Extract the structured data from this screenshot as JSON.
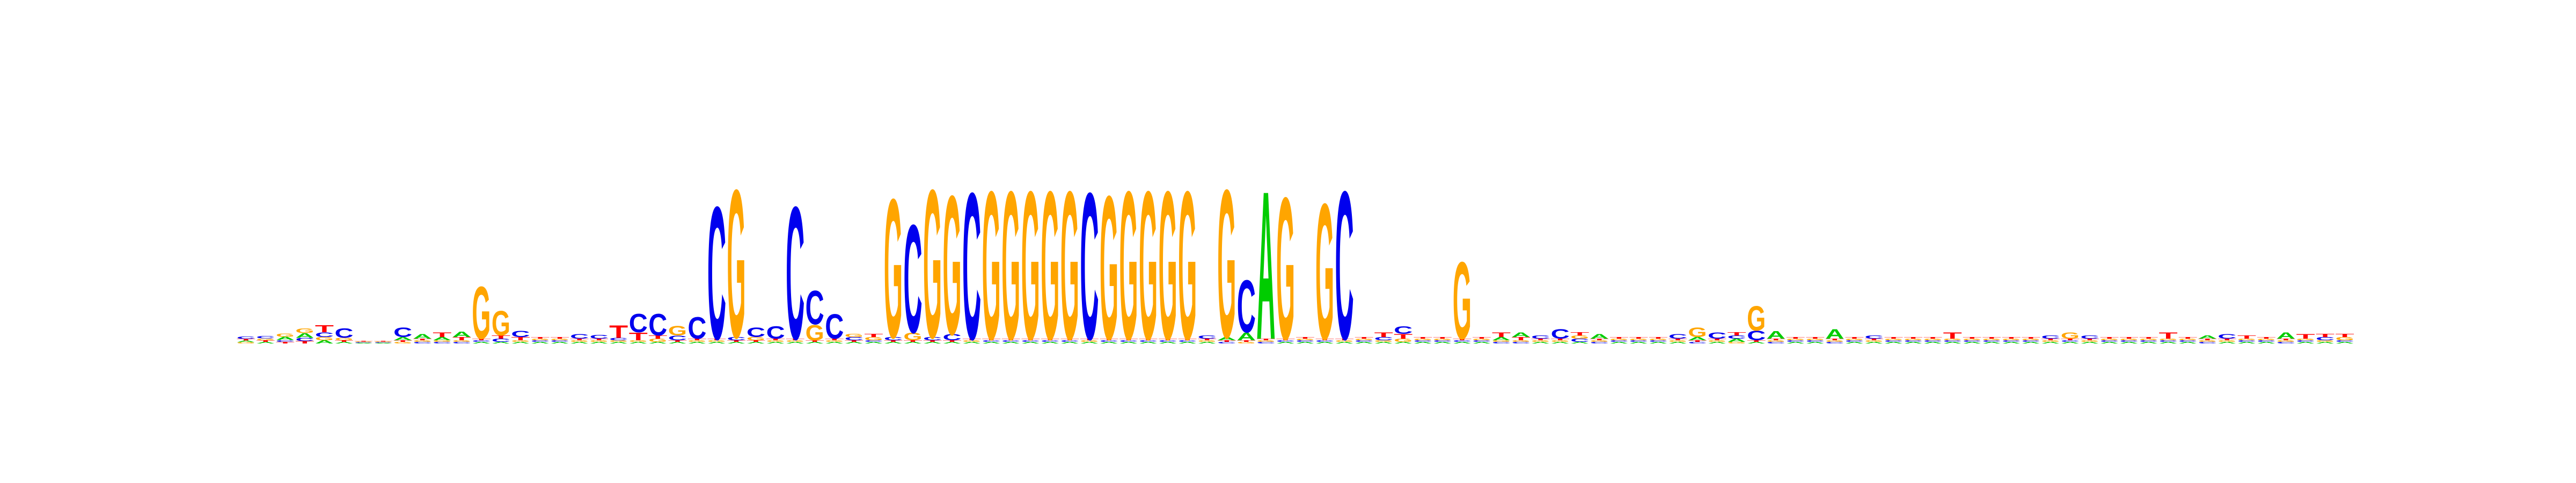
{
  "chart_data": {
    "type": "sequence-logo",
    "title": "",
    "xlabel": "",
    "ylabel": "",
    "axes_visible": false,
    "alphabet": [
      "A",
      "C",
      "G",
      "T"
    ],
    "colors": {
      "A": "#00cc00",
      "C": "#0000ee",
      "G": "#ffa500",
      "T": "#ff0000"
    },
    "ylim": [
      0,
      2
    ],
    "positions": [
      {
        "A": 0.01,
        "C": 0.015,
        "G": 0.008,
        "T": 0.01
      },
      {
        "A": 0.01,
        "C": 0.015,
        "G": 0.012,
        "T": 0.01
      },
      {
        "A": 0.02,
        "C": 0.012,
        "G": 0.02,
        "T": 0.01
      },
      {
        "A": 0.03,
        "C": 0.02,
        "G": 0.03,
        "T": 0.015
      },
      {
        "A": 0.02,
        "C": 0.03,
        "G": 0.02,
        "T": 0.045
      },
      {
        "A": 0.01,
        "C": 0.06,
        "G": 0.015,
        "T": 0.01
      },
      {
        "A": 0.004,
        "C": 0.004,
        "G": 0.004,
        "T": 0.004
      },
      {
        "A": 0.004,
        "C": 0.004,
        "G": 0.004,
        "T": 0.004
      },
      {
        "A": 0.02,
        "C": 0.06,
        "G": 0.01,
        "T": 0.01
      },
      {
        "A": 0.03,
        "C": 0.01,
        "G": 0.01,
        "T": 0.01
      },
      {
        "A": 0.02,
        "C": 0.01,
        "G": 0.01,
        "T": 0.03
      },
      {
        "A": 0.035,
        "C": 0.01,
        "G": 0.01,
        "T": 0.02
      },
      {
        "A": 0.01,
        "C": 0.01,
        "G": 0.34,
        "T": 0.01
      },
      {
        "A": 0.01,
        "C": 0.02,
        "G": 0.16,
        "T": 0.02
      },
      {
        "A": 0.01,
        "C": 0.04,
        "G": 0.01,
        "T": 0.02
      },
      {
        "A": 0.01,
        "C": 0.01,
        "G": 0.01,
        "T": 0.01
      },
      {
        "A": 0.01,
        "C": 0.01,
        "G": 0.01,
        "T": 0.01
      },
      {
        "A": 0.01,
        "C": 0.03,
        "G": 0.01,
        "T": 0.01
      },
      {
        "A": 0.01,
        "C": 0.025,
        "G": 0.01,
        "T": 0.01
      },
      {
        "A": 0.01,
        "C": 0.015,
        "G": 0.01,
        "T": 0.08
      },
      {
        "A": 0.01,
        "C": 0.12,
        "G": 0.01,
        "T": 0.05
      },
      {
        "A": 0.01,
        "C": 0.14,
        "G": 0.02,
        "T": 0.02
      },
      {
        "A": 0.01,
        "C": 0.03,
        "G": 0.06,
        "T": 0.01
      },
      {
        "A": 0.01,
        "C": 0.14,
        "G": 0.01,
        "T": 0.01
      },
      {
        "A": 0.01,
        "C": 0.86,
        "G": 0.01,
        "T": 0.01
      },
      {
        "A": 0.01,
        "C": 0.02,
        "G": 0.96,
        "T": 0.01
      },
      {
        "A": 0.01,
        "C": 0.06,
        "G": 0.02,
        "T": 0.01
      },
      {
        "A": 0.01,
        "C": 0.08,
        "G": 0.01,
        "T": 0.01
      },
      {
        "A": 0.01,
        "C": 0.86,
        "G": 0.01,
        "T": 0.01
      },
      {
        "A": 0.01,
        "C": 0.22,
        "G": 0.1,
        "T": 0.01
      },
      {
        "A": 0.01,
        "C": 0.16,
        "G": 0.01,
        "T": 0.01
      },
      {
        "A": 0.01,
        "C": 0.02,
        "G": 0.02,
        "T": 0.01
      },
      {
        "A": 0.01,
        "C": 0.01,
        "G": 0.02,
        "T": 0.02
      },
      {
        "A": 0.01,
        "C": 0.02,
        "G": 0.9,
        "T": 0.01
      },
      {
        "A": 0.01,
        "C": 0.7,
        "G": 0.05,
        "T": 0.01
      },
      {
        "A": 0.01,
        "C": 0.02,
        "G": 0.96,
        "T": 0.01
      },
      {
        "A": 0.01,
        "C": 0.04,
        "G": 0.9,
        "T": 0.01
      },
      {
        "A": 0.01,
        "C": 0.95,
        "G": 0.01,
        "T": 0.01
      },
      {
        "A": 0.01,
        "C": 0.01,
        "G": 0.96,
        "T": 0.01
      },
      {
        "A": 0.01,
        "C": 0.01,
        "G": 0.96,
        "T": 0.01
      },
      {
        "A": 0.01,
        "C": 0.01,
        "G": 0.96,
        "T": 0.01
      },
      {
        "A": 0.01,
        "C": 0.01,
        "G": 0.96,
        "T": 0.01
      },
      {
        "A": 0.01,
        "C": 0.01,
        "G": 0.96,
        "T": 0.01
      },
      {
        "A": 0.01,
        "C": 0.95,
        "G": 0.01,
        "T": 0.01
      },
      {
        "A": 0.01,
        "C": 0.01,
        "G": 0.93,
        "T": 0.01
      },
      {
        "A": 0.01,
        "C": 0.01,
        "G": 0.96,
        "T": 0.01
      },
      {
        "A": 0.01,
        "C": 0.01,
        "G": 0.96,
        "T": 0.01
      },
      {
        "A": 0.01,
        "C": 0.01,
        "G": 0.96,
        "T": 0.01
      },
      {
        "A": 0.01,
        "C": 0.01,
        "G": 0.96,
        "T": 0.01
      },
      {
        "A": 0.01,
        "C": 0.02,
        "G": 0.01,
        "T": 0.01
      },
      {
        "A": 0.02,
        "C": 0.01,
        "G": 0.96,
        "T": 0.01
      },
      {
        "A": 0.05,
        "C": 0.34,
        "G": 0.01,
        "T": 0.01
      },
      {
        "A": 0.96,
        "C": 0.01,
        "G": 0.01,
        "T": 0.01
      },
      {
        "A": 0.01,
        "C": 0.01,
        "G": 0.92,
        "T": 0.01
      },
      {
        "A": 0.01,
        "C": 0.01,
        "G": 0.01,
        "T": 0.01
      },
      {
        "A": 0.01,
        "C": 0.01,
        "G": 0.88,
        "T": 0.01
      },
      {
        "A": 0.01,
        "C": 0.96,
        "G": 0.01,
        "T": 0.01
      },
      {
        "A": 0.01,
        "C": 0.01,
        "G": 0.01,
        "T": 0.01
      },
      {
        "A": 0.01,
        "C": 0.02,
        "G": 0.01,
        "T": 0.03
      },
      {
        "A": 0.01,
        "C": 0.05,
        "G": 0.02,
        "T": 0.03
      },
      {
        "A": 0.01,
        "C": 0.01,
        "G": 0.01,
        "T": 0.01
      },
      {
        "A": 0.01,
        "C": 0.01,
        "G": 0.01,
        "T": 0.01
      },
      {
        "A": 0.01,
        "C": 0.01,
        "G": 0.5,
        "T": 0.01
      },
      {
        "A": 0.01,
        "C": 0.01,
        "G": 0.01,
        "T": 0.01
      },
      {
        "A": 0.02,
        "C": 0.01,
        "G": 0.01,
        "T": 0.03
      },
      {
        "A": 0.03,
        "C": 0.01,
        "G": 0.01,
        "T": 0.02
      },
      {
        "A": 0.01,
        "C": 0.02,
        "G": 0.01,
        "T": 0.01
      },
      {
        "A": 0.01,
        "C": 0.06,
        "G": 0.01,
        "T": 0.01
      },
      {
        "A": 0.01,
        "C": 0.02,
        "G": 0.02,
        "T": 0.02
      },
      {
        "A": 0.03,
        "C": 0.01,
        "G": 0.01,
        "T": 0.01
      },
      {
        "A": 0.01,
        "C": 0.01,
        "G": 0.01,
        "T": 0.01
      },
      {
        "A": 0.01,
        "C": 0.01,
        "G": 0.01,
        "T": 0.01
      },
      {
        "A": 0.01,
        "C": 0.01,
        "G": 0.01,
        "T": 0.01
      },
      {
        "A": 0.01,
        "C": 0.03,
        "G": 0.01,
        "T": 0.01
      },
      {
        "A": 0.02,
        "C": 0.01,
        "G": 0.06,
        "T": 0.01
      },
      {
        "A": 0.01,
        "C": 0.04,
        "G": 0.01,
        "T": 0.01
      },
      {
        "A": 0.02,
        "C": 0.02,
        "G": 0.01,
        "T": 0.02
      },
      {
        "A": 0.01,
        "C": 0.06,
        "G": 0.16,
        "T": 0.01
      },
      {
        "A": 0.05,
        "C": 0.01,
        "G": 0.01,
        "T": 0.01
      },
      {
        "A": 0.01,
        "C": 0.01,
        "G": 0.01,
        "T": 0.01
      },
      {
        "A": 0.01,
        "C": 0.01,
        "G": 0.01,
        "T": 0.01
      },
      {
        "A": 0.06,
        "C": 0.01,
        "G": 0.01,
        "T": 0.01
      },
      {
        "A": 0.01,
        "C": 0.01,
        "G": 0.01,
        "T": 0.01
      },
      {
        "A": 0.01,
        "C": 0.02,
        "G": 0.01,
        "T": 0.01
      },
      {
        "A": 0.01,
        "C": 0.01,
        "G": 0.01,
        "T": 0.01
      },
      {
        "A": 0.01,
        "C": 0.01,
        "G": 0.01,
        "T": 0.01
      },
      {
        "A": 0.01,
        "C": 0.01,
        "G": 0.01,
        "T": 0.01
      },
      {
        "A": 0.01,
        "C": 0.01,
        "G": 0.01,
        "T": 0.04
      },
      {
        "A": 0.01,
        "C": 0.01,
        "G": 0.01,
        "T": 0.01
      },
      {
        "A": 0.01,
        "C": 0.01,
        "G": 0.01,
        "T": 0.01
      },
      {
        "A": 0.01,
        "C": 0.01,
        "G": 0.01,
        "T": 0.01
      },
      {
        "A": 0.01,
        "C": 0.01,
        "G": 0.01,
        "T": 0.01
      },
      {
        "A": 0.01,
        "C": 0.02,
        "G": 0.01,
        "T": 0.01
      },
      {
        "A": 0.01,
        "C": 0.01,
        "G": 0.04,
        "T": 0.01
      },
      {
        "A": 0.01,
        "C": 0.02,
        "G": 0.01,
        "T": 0.01
      },
      {
        "A": 0.01,
        "C": 0.01,
        "G": 0.01,
        "T": 0.01
      },
      {
        "A": 0.01,
        "C": 0.01,
        "G": 0.01,
        "T": 0.01
      },
      {
        "A": 0.01,
        "C": 0.01,
        "G": 0.01,
        "T": 0.01
      },
      {
        "A": 0.01,
        "C": 0.01,
        "G": 0.01,
        "T": 0.04
      },
      {
        "A": 0.01,
        "C": 0.01,
        "G": 0.01,
        "T": 0.01
      },
      {
        "A": 0.02,
        "C": 0.01,
        "G": 0.01,
        "T": 0.01
      },
      {
        "A": 0.01,
        "C": 0.03,
        "G": 0.01,
        "T": 0.01
      },
      {
        "A": 0.01,
        "C": 0.01,
        "G": 0.01,
        "T": 0.02
      },
      {
        "A": 0.01,
        "C": 0.01,
        "G": 0.01,
        "T": 0.01
      },
      {
        "A": 0.04,
        "C": 0.01,
        "G": 0.01,
        "T": 0.01
      },
      {
        "A": 0.01,
        "C": 0.01,
        "G": 0.01,
        "T": 0.03
      },
      {
        "A": 0.01,
        "C": 0.02,
        "G": 0.01,
        "T": 0.02
      },
      {
        "A": 0.01,
        "C": 0.01,
        "G": 0.02,
        "T": 0.02
      }
    ]
  }
}
